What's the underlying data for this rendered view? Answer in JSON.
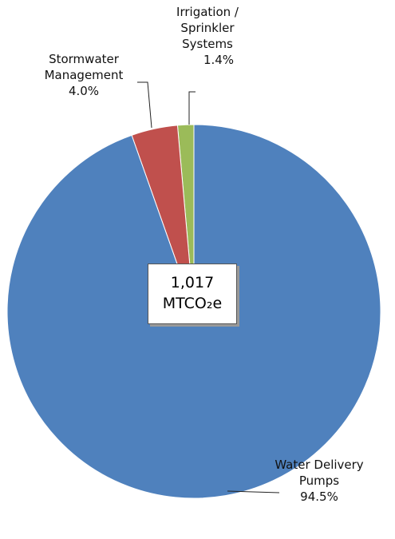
{
  "chart_data": {
    "type": "pie",
    "categories": [
      "Water Delivery Pumps",
      "Stormwater Management",
      "Irrigation / Sprinkler Systems"
    ],
    "values": [
      94.5,
      4.0,
      1.4
    ],
    "value_labels": [
      "94.5%",
      "4.0%",
      "1.4%"
    ],
    "colors": [
      "#4f81bd",
      "#c0504d",
      "#9bbb59"
    ],
    "center_annotation": {
      "total": "1,017",
      "unit": "MTCO₂e"
    }
  }
}
